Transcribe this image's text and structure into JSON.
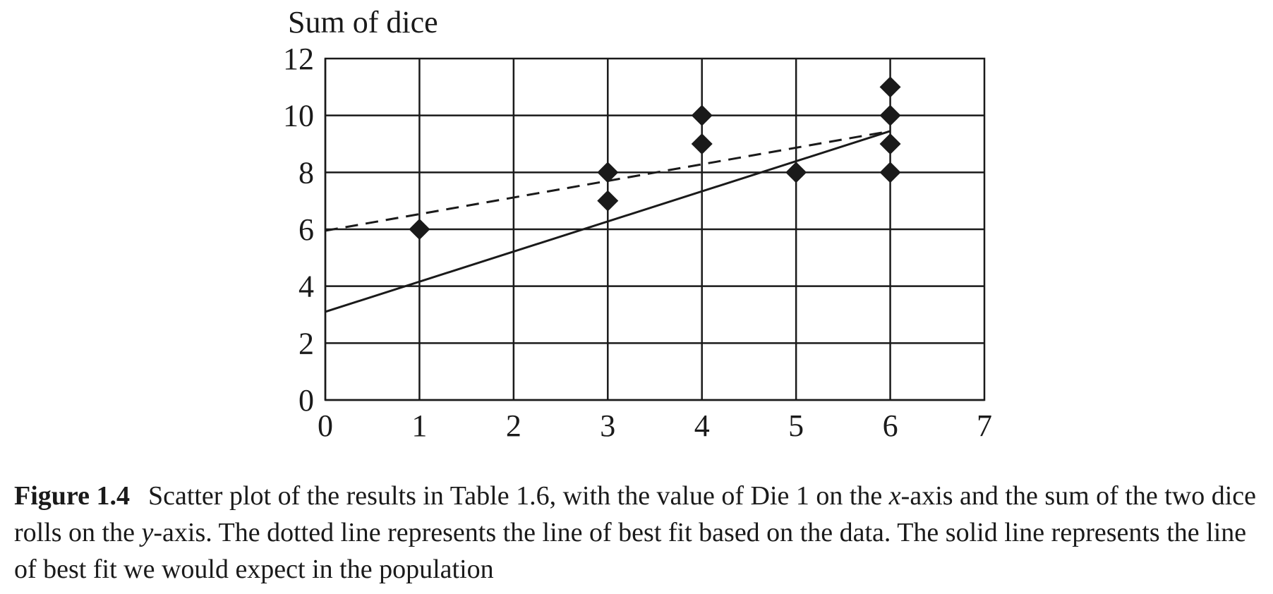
{
  "chart_data": {
    "type": "scatter",
    "ylabel": "Sum of dice",
    "xlabel": "",
    "xlim": [
      0,
      7
    ],
    "ylim": [
      0,
      12
    ],
    "x_ticks": [
      0,
      1,
      2,
      3,
      4,
      5,
      6,
      7
    ],
    "y_ticks": [
      0,
      2,
      4,
      6,
      8,
      10,
      12
    ],
    "grid": true,
    "points": [
      {
        "x": 1,
        "y": 6
      },
      {
        "x": 3,
        "y": 7
      },
      {
        "x": 3,
        "y": 8
      },
      {
        "x": 4,
        "y": 9
      },
      {
        "x": 4,
        "y": 10
      },
      {
        "x": 5,
        "y": 8
      },
      {
        "x": 6,
        "y": 8
      },
      {
        "x": 6,
        "y": 9
      },
      {
        "x": 6,
        "y": 10
      },
      {
        "x": 6,
        "y": 11
      }
    ],
    "lines": [
      {
        "style": "dashed",
        "x": [
          0,
          6
        ],
        "y": [
          5.95,
          9.45
        ]
      },
      {
        "style": "solid",
        "x": [
          0,
          6
        ],
        "y": [
          3.1,
          9.45
        ]
      }
    ]
  },
  "caption": {
    "label": "Figure 1.4",
    "text_1": "Scatter plot of the results in Table 1.6, with the value of Die 1 on the ",
    "x_var": "x",
    "text_2": "-axis and the sum of the two dice rolls on the ",
    "y_var": "y",
    "text_3": "-axis. The dotted line represents the line of best fit based on the data. The solid line represents the line of best fit we would expect in the population"
  }
}
